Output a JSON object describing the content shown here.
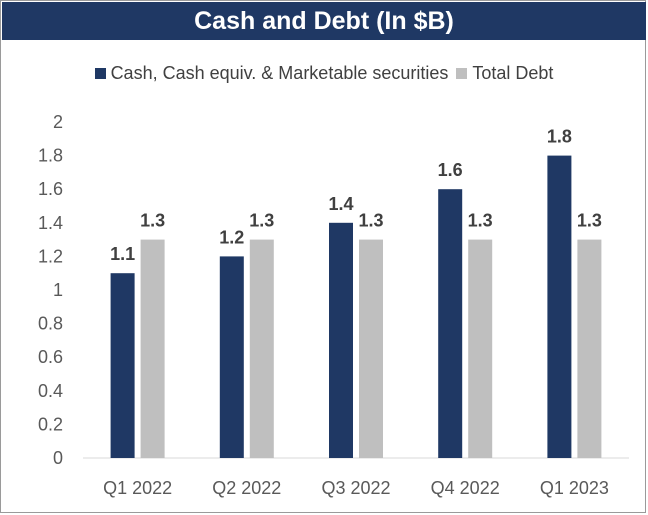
{
  "chart_data": {
    "type": "bar",
    "title": "Cash and Debt (In $B)",
    "categories": [
      "Q1 2022",
      "Q2 2022",
      "Q3 2022",
      "Q4 2022",
      "Q1 2023"
    ],
    "series": [
      {
        "name": "Cash, Cash equiv. & Marketable securities",
        "color": "#1f3864",
        "values": [
          1.1,
          1.2,
          1.4,
          1.6,
          1.8
        ],
        "labels": [
          "1.1",
          "1.2",
          "1.4",
          "1.6",
          "1.8"
        ]
      },
      {
        "name": "Total Debt",
        "color": "#bfbfbf",
        "values": [
          1.3,
          1.3,
          1.3,
          1.3,
          1.3
        ],
        "labels": [
          "1.3",
          "1.3",
          "1.3",
          "1.3",
          "1.3"
        ]
      }
    ],
    "ylim": [
      0,
      2
    ],
    "yticks": [
      "0",
      "0.2",
      "0.4",
      "0.6",
      "0.8",
      "1",
      "1.2",
      "1.4",
      "1.6",
      "1.8",
      "2"
    ],
    "xlabel": "",
    "ylabel": "",
    "grid": false,
    "legend_position": "top"
  }
}
